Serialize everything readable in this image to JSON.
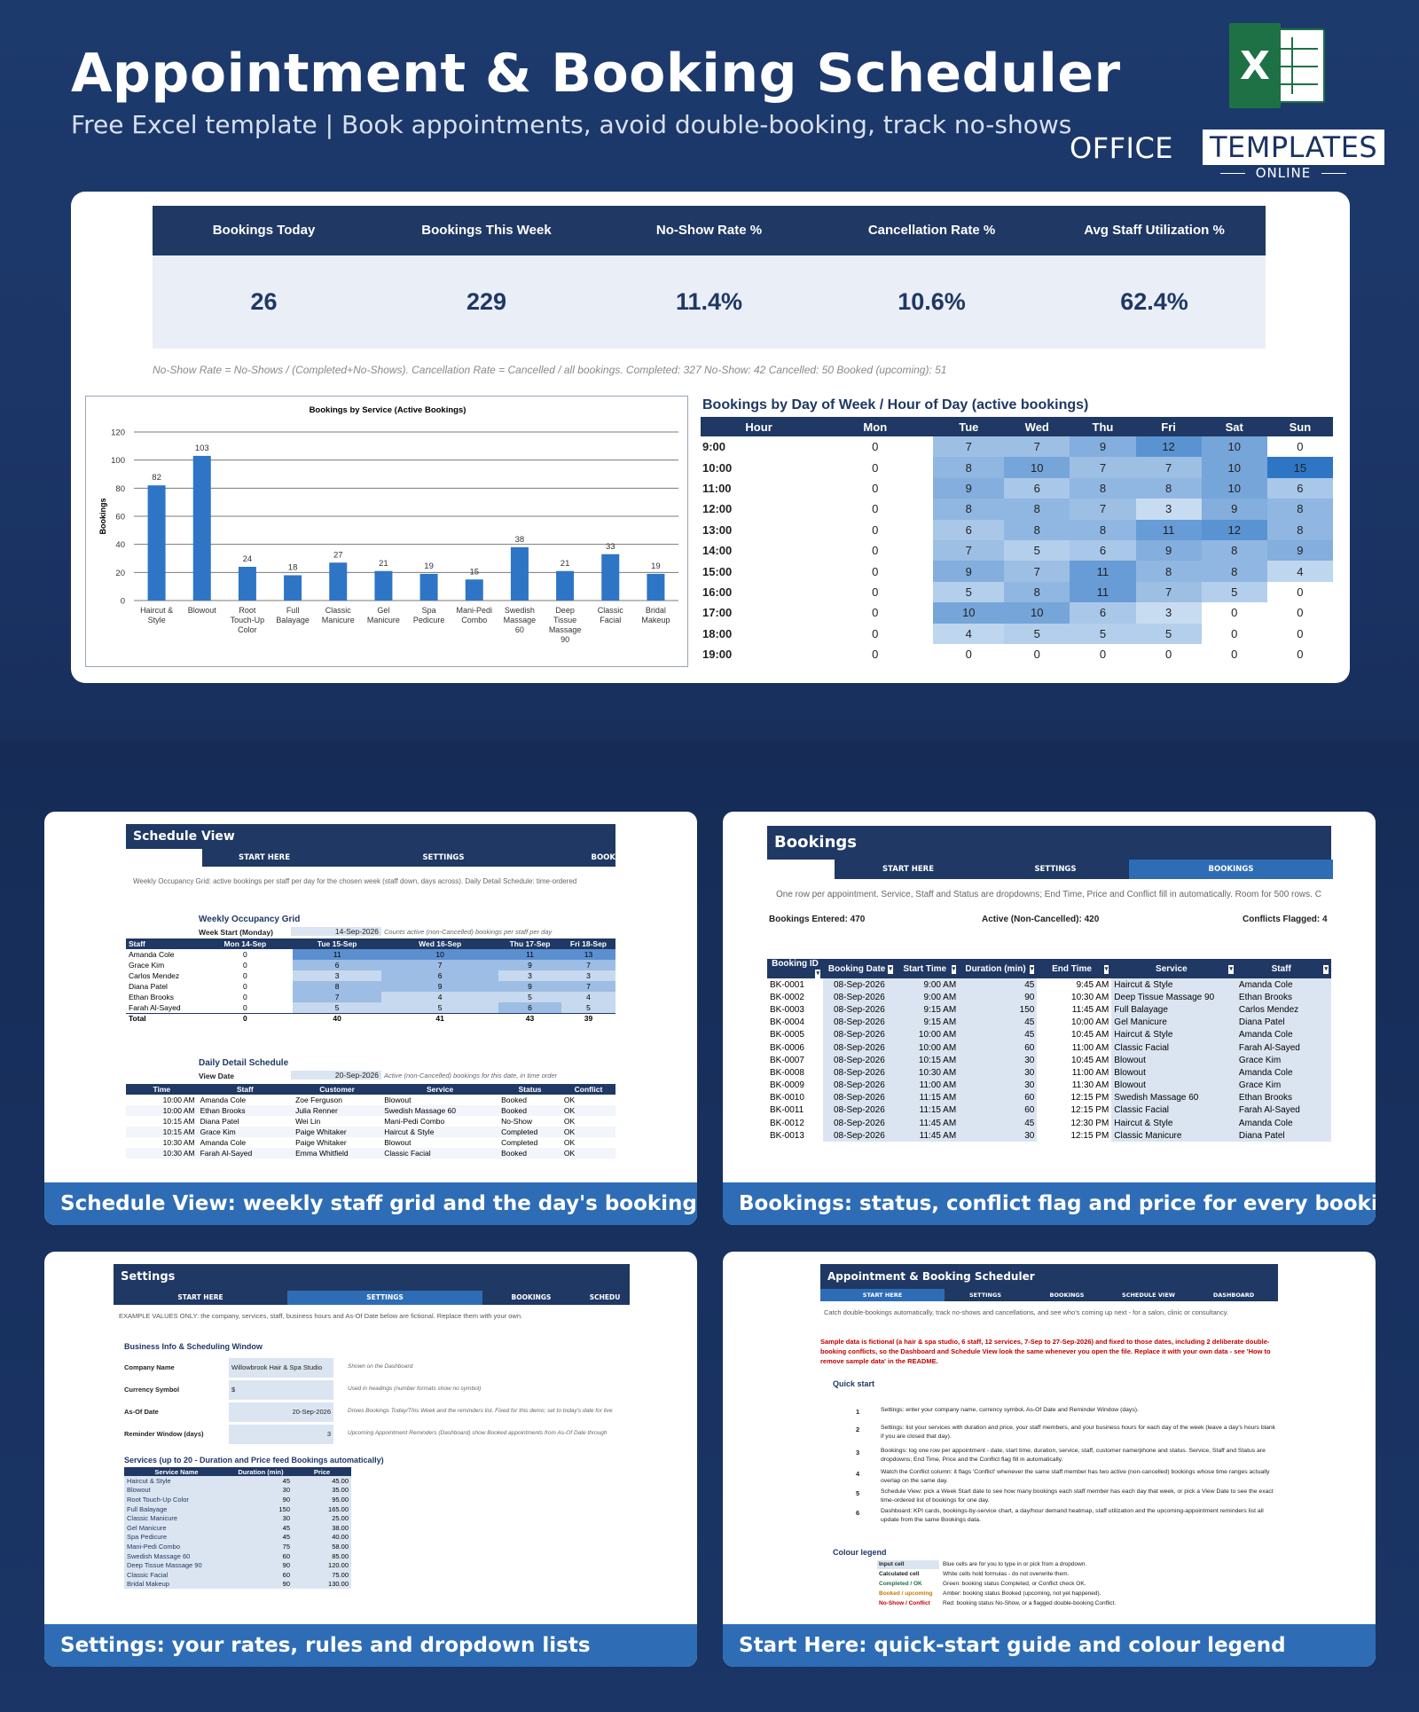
{
  "header": {
    "title": "Appointment & Booking Scheduler",
    "subtitle": "Free Excel template  |  Book appointments, avoid double-booking, track no-shows",
    "excel_logo": "X",
    "brand_a": "OFFICE",
    "brand_b": "TEMPLATES",
    "brand_c": "ONLINE"
  },
  "kpis": [
    {
      "label": "Bookings Today",
      "value": "26"
    },
    {
      "label": "Bookings This Week",
      "value": "229"
    },
    {
      "label": "No-Show Rate %",
      "value": "11.4%"
    },
    {
      "label": "Cancellation Rate %",
      "value": "10.6%"
    },
    {
      "label": "Avg Staff Utilization %",
      "value": "62.4%"
    }
  ],
  "kpi_note": "No-Show Rate = No-Shows / (Completed+No-Shows). Cancellation Rate = Cancelled / all bookings. Completed: 327  No-Show: 42  Cancelled: 50  Booked (upcoming): 51",
  "chart_data": {
    "type": "bar",
    "title": "Bookings by Service (Active Bookings)",
    "ylabel": "Bookings",
    "ylim": [
      0,
      120
    ],
    "yticks": [
      0,
      20,
      40,
      60,
      80,
      100,
      120
    ],
    "grid": true,
    "bar_color": "#2e75c5",
    "categories": [
      "Haircut & Style",
      "Blowout",
      "Root Touch-Up Color",
      "Full Balayage",
      "Classic Manicure",
      "Gel Manicure",
      "Spa Pedicure",
      "Mani-Pedi Combo",
      "Swedish Massage 60",
      "Deep Tissue Massage 90",
      "Classic Facial",
      "Bridal Makeup"
    ],
    "values": [
      82,
      103,
      24,
      18,
      27,
      21,
      19,
      15,
      38,
      21,
      33,
      19
    ]
  },
  "heatmap": {
    "title": "Bookings by Day of Week / Hour of Day (active bookings)",
    "columns": [
      "Hour",
      "Mon",
      "Tue",
      "Wed",
      "Thu",
      "Fri",
      "Sat",
      "Sun"
    ],
    "rows": [
      {
        "hour": "9:00",
        "values": [
          0,
          7,
          7,
          9,
          12,
          10,
          0
        ]
      },
      {
        "hour": "10:00",
        "values": [
          0,
          8,
          10,
          7,
          7,
          10,
          15
        ]
      },
      {
        "hour": "11:00",
        "values": [
          0,
          9,
          6,
          8,
          8,
          10,
          6
        ]
      },
      {
        "hour": "12:00",
        "values": [
          0,
          8,
          8,
          7,
          3,
          9,
          8
        ]
      },
      {
        "hour": "13:00",
        "values": [
          0,
          6,
          8,
          8,
          11,
          12,
          8
        ]
      },
      {
        "hour": "14:00",
        "values": [
          0,
          7,
          5,
          6,
          9,
          8,
          9
        ]
      },
      {
        "hour": "15:00",
        "values": [
          0,
          9,
          7,
          11,
          8,
          8,
          4
        ]
      },
      {
        "hour": "16:00",
        "values": [
          0,
          5,
          8,
          11,
          7,
          5,
          0
        ]
      },
      {
        "hour": "17:00",
        "values": [
          0,
          10,
          10,
          6,
          3,
          0,
          0
        ]
      },
      {
        "hour": "18:00",
        "values": [
          0,
          4,
          5,
          5,
          5,
          0,
          0
        ]
      },
      {
        "hour": "19:00",
        "values": [
          0,
          0,
          0,
          0,
          0,
          0,
          0
        ]
      }
    ]
  },
  "captions": {
    "schedule": "Schedule View: weekly staff grid and the day's bookings",
    "bookings": "Bookings: status, conflict flag and price for every booking",
    "settings": "Settings: your rates, rules and dropdown lists",
    "start": "Start Here: quick-start guide and colour legend"
  },
  "schedule": {
    "title": "Schedule View",
    "tabs": [
      "START HERE",
      "SETTINGS",
      "BOOK"
    ],
    "desc": "Weekly Occupancy Grid: active bookings per staff per day for the chosen week (staff down, days across). Daily Detail Schedule: time-ordered",
    "grid_title": "Weekly Occupancy Grid",
    "week_start_label": "Week Start (Monday)",
    "week_start": "14-Sep-2026",
    "week_note": "Counts active (non-Cancelled) bookings per staff per day",
    "grid_cols": [
      "Staff",
      "Mon 14-Sep",
      "Tue 15-Sep",
      "Wed 16-Sep",
      "Thu 17-Sep",
      "Fri 18-Sep"
    ],
    "grid_rows": [
      [
        "Amanda Cole",
        "0",
        "11",
        "10",
        "11",
        "13"
      ],
      [
        "Grace Kim",
        "0",
        "6",
        "7",
        "9",
        "7"
      ],
      [
        "Carlos Mendez",
        "0",
        "3",
        "6",
        "3",
        "3"
      ],
      [
        "Diana Patel",
        "0",
        "8",
        "9",
        "9",
        "7"
      ],
      [
        "Ethan Brooks",
        "0",
        "7",
        "4",
        "5",
        "4"
      ],
      [
        "Farah Al-Sayed",
        "0",
        "5",
        "5",
        "6",
        "5"
      ],
      [
        "Total",
        "0",
        "40",
        "41",
        "43",
        "39"
      ]
    ],
    "daily_title": "Daily Detail Schedule",
    "view_date_label": "View Date",
    "view_date": "20-Sep-2026",
    "daily_note": "Active (non-Cancelled) bookings for this date, in time order",
    "daily_cols": [
      "Time",
      "Staff",
      "Customer",
      "Service",
      "Status",
      "Conflict"
    ],
    "daily_rows": [
      [
        "10:00 AM",
        "Amanda Cole",
        "Zoe Ferguson",
        "Blowout",
        "Booked",
        "OK"
      ],
      [
        "10:00 AM",
        "Ethan Brooks",
        "Julia Renner",
        "Swedish Massage 60",
        "Booked",
        "OK"
      ],
      [
        "10:15 AM",
        "Diana Patel",
        "Wei Lin",
        "Mani-Pedi Combo",
        "No-Show",
        "OK"
      ],
      [
        "10:15 AM",
        "Grace Kim",
        "Paige Whitaker",
        "Haircut & Style",
        "Completed",
        "OK"
      ],
      [
        "10:30 AM",
        "Amanda Cole",
        "Paige Whitaker",
        "Blowout",
        "Completed",
        "OK"
      ],
      [
        "10:30 AM",
        "Farah Al-Sayed",
        "Emma Whitfield",
        "Classic Facial",
        "Booked",
        "OK"
      ]
    ]
  },
  "bookings": {
    "title": "Bookings",
    "tabs": [
      "START HERE",
      "SETTINGS",
      "BOOKINGS"
    ],
    "desc": "One row per appointment. Service, Staff and Status are dropdowns; End Time, Price and Conflict fill in automatically. Room for 500 rows. C",
    "entered": "Bookings Entered: 470",
    "active": "Active (Non-Cancelled): 420",
    "flagged": "Conflicts Flagged: 4",
    "cols": [
      "Booking ID",
      "Booking Date",
      "Start Time",
      "Duration (min)",
      "End Time",
      "Service",
      "Staff"
    ],
    "rows": [
      [
        "BK-0001",
        "08-Sep-2026",
        "9:00 AM",
        "45",
        "9:45 AM",
        "Haircut & Style",
        "Amanda Cole"
      ],
      [
        "BK-0002",
        "08-Sep-2026",
        "9:00 AM",
        "90",
        "10:30 AM",
        "Deep Tissue Massage 90",
        "Ethan Brooks"
      ],
      [
        "BK-0003",
        "08-Sep-2026",
        "9:15 AM",
        "150",
        "11:45 AM",
        "Full Balayage",
        "Carlos Mendez"
      ],
      [
        "BK-0004",
        "08-Sep-2026",
        "9:15 AM",
        "45",
        "10:00 AM",
        "Gel Manicure",
        "Diana Patel"
      ],
      [
        "BK-0005",
        "08-Sep-2026",
        "10:00 AM",
        "45",
        "10:45 AM",
        "Haircut & Style",
        "Amanda Cole"
      ],
      [
        "BK-0006",
        "08-Sep-2026",
        "10:00 AM",
        "60",
        "11:00 AM",
        "Classic Facial",
        "Farah Al-Sayed"
      ],
      [
        "BK-0007",
        "08-Sep-2026",
        "10:15 AM",
        "30",
        "10:45 AM",
        "Blowout",
        "Grace Kim"
      ],
      [
        "BK-0008",
        "08-Sep-2026",
        "10:30 AM",
        "30",
        "11:00 AM",
        "Blowout",
        "Amanda Cole"
      ],
      [
        "BK-0009",
        "08-Sep-2026",
        "11:00 AM",
        "30",
        "11:30 AM",
        "Blowout",
        "Grace Kim"
      ],
      [
        "BK-0010",
        "08-Sep-2026",
        "11:15 AM",
        "60",
        "12:15 PM",
        "Swedish Massage 60",
        "Ethan Brooks"
      ],
      [
        "BK-0011",
        "08-Sep-2026",
        "11:15 AM",
        "60",
        "12:15 PM",
        "Classic Facial",
        "Farah Al-Sayed"
      ],
      [
        "BK-0012",
        "08-Sep-2026",
        "11:45 AM",
        "45",
        "12:30 PM",
        "Haircut & Style",
        "Amanda Cole"
      ],
      [
        "BK-0013",
        "08-Sep-2026",
        "11:45 AM",
        "30",
        "12:15 PM",
        "Classic Manicure",
        "Diana Patel"
      ]
    ]
  },
  "settings": {
    "title": "Settings",
    "tabs": [
      "START HERE",
      "SETTINGS",
      "BOOKINGS",
      "SCHEDU"
    ],
    "desc": "EXAMPLE VALUES ONLY: the company, services, staff, business hours and As-Of Date below are fictional. Replace them with your own.",
    "section": "Business Info & Scheduling Window",
    "fields": [
      {
        "label": "Company Name",
        "value": "Willowbrook Hair & Spa Studio",
        "note": "Shown on the Dashboard"
      },
      {
        "label": "Currency Symbol",
        "value": "$",
        "note": "Used in headings (number formats show no symbol)"
      },
      {
        "label": "As-Of Date",
        "value": "20-Sep-2026",
        "note": "Drives Bookings Today/This Week and the reminders list. Fixed for this demo; set to today's date for live"
      },
      {
        "label": "Reminder Window (days)",
        "value": "3",
        "note": "Upcoming Appointment Reminders (Dashboard) show Booked appointments from As-Of Date through"
      }
    ],
    "svc_title": "Services (up to 20 - Duration and Price feed Bookings automatically)",
    "svc_cols": [
      "Service Name",
      "Duration (min)",
      "Price"
    ],
    "svc_rows": [
      [
        "Haircut & Style",
        "45",
        "45.00"
      ],
      [
        "Blowout",
        "30",
        "35.00"
      ],
      [
        "Root Touch-Up Color",
        "90",
        "95.00"
      ],
      [
        "Full Balayage",
        "150",
        "165.00"
      ],
      [
        "Classic Manicure",
        "30",
        "25.00"
      ],
      [
        "Gel Manicure",
        "45",
        "38.00"
      ],
      [
        "Spa Pedicure",
        "45",
        "40.00"
      ],
      [
        "Mani-Pedi Combo",
        "75",
        "58.00"
      ],
      [
        "Swedish Massage 60",
        "60",
        "85.00"
      ],
      [
        "Deep Tissue Massage 90",
        "90",
        "120.00"
      ],
      [
        "Classic Facial",
        "60",
        "75.00"
      ],
      [
        "Bridal Makeup",
        "90",
        "130.00"
      ]
    ]
  },
  "start": {
    "title": "Appointment & Booking Scheduler",
    "tabs": [
      "START HERE",
      "SETTINGS",
      "BOOKINGS",
      "SCHEDULE VIEW",
      "DASHBOARD"
    ],
    "desc": "Catch double-bookings automatically, track no-shows and cancellations, and see who's coming up next - for a salon, clinic or consultancy.",
    "warning": "Sample data is fictional (a hair & spa studio, 6 staff, 12 services, 7-Sep to 27-Sep-2026) and fixed to those dates, including 2 deliberate double-booking conflicts, so the Dashboard and Schedule View look the same whenever you open the file. Replace it with your own data - see 'How to remove sample data' in the README.",
    "qs_title": "Quick start",
    "steps": [
      [
        "1",
        "Settings: enter your company name, currency symbol, As-Of Date and Reminder Window (days)."
      ],
      [
        "2",
        "Settings: list your services with duration and price, your staff members, and your business hours for each day of the week (leave a day's hours blank if you are closed that day)."
      ],
      [
        "3",
        "Bookings: log one row per appointment - date, start time, duration, service, staff, customer name/phone and status. Service, Staff and Status are dropdowns; End Time, Price and the Conflict flag fill in automatically."
      ],
      [
        "4",
        "Watch the Conflict column: it flags 'Conflict' whenever the same staff member has two active (non-cancelled) bookings whose time ranges actually overlap on the same day."
      ],
      [
        "5",
        "Schedule View: pick a Week Start date to see how many bookings each staff member has each day that week, or pick a View Date to see the exact time-ordered list of bookings for one day."
      ],
      [
        "6",
        "Dashboard: KPI cards, bookings-by-service chart, a day/hour demand heatmap, staff utilization and the upcoming-appointment reminders list all update from the same Bookings data."
      ]
    ],
    "legend_title": "Colour legend",
    "legend": [
      {
        "label": "Input cell",
        "desc": "Blue cells are for you to type in or pick from a dropdown.",
        "bg": "#dbe5f1",
        "fg": "#222222"
      },
      {
        "label": "Calculated cell",
        "desc": "White cells hold formulas - do not overwrite them.",
        "bg": "#ffffff",
        "fg": "#222222"
      },
      {
        "label": "Completed / OK",
        "desc": "Green: booking status Completed, or Conflict check OK.",
        "bg": "#ffffff",
        "fg": "#1e7145"
      },
      {
        "label": "Booked / upcoming",
        "desc": "Amber: booking status Booked (upcoming, not yet happened).",
        "bg": "#ffffff",
        "fg": "#c47a00"
      },
      {
        "label": "No-Show / Conflict",
        "desc": "Red: booking status No-Show, or a flagged double-booking Conflict.",
        "bg": "#ffffff",
        "fg": "#c00000"
      }
    ]
  }
}
